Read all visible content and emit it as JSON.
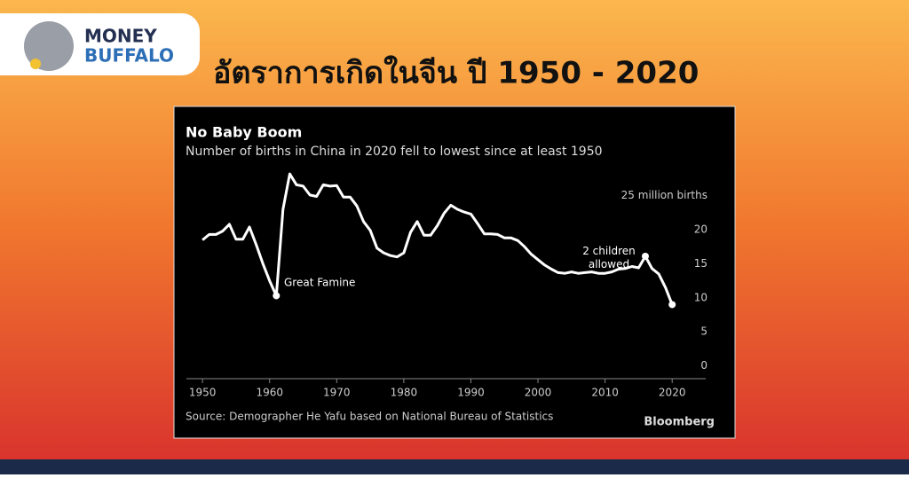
{
  "header": {
    "logo_top": "MONEY",
    "logo_bottom": "BUFFALO",
    "title": "อัตราการเกิดในจีน ปี 1950 - 2020"
  },
  "chart_data": {
    "type": "line",
    "title": "No Baby Boom",
    "subtitle": "Number of births in China in 2020 fell to lowest since at least 1950",
    "source": "Source: Demographer He Yafu based on National Bureau of Statistics",
    "brand": "Bloomberg",
    "annotations": [
      "Great Famine",
      "2 children allowed"
    ],
    "x": [
      1950,
      1951,
      1952,
      1953,
      1954,
      1955,
      1956,
      1957,
      1958,
      1959,
      1960,
      1961,
      1962,
      1963,
      1964,
      1965,
      1966,
      1967,
      1968,
      1969,
      1970,
      1971,
      1972,
      1973,
      1974,
      1975,
      1976,
      1977,
      1978,
      1979,
      1980,
      1981,
      1982,
      1983,
      1984,
      1985,
      1986,
      1987,
      1988,
      1989,
      1990,
      1991,
      1992,
      1993,
      1994,
      1995,
      1996,
      1997,
      1998,
      1999,
      2000,
      2001,
      2002,
      2003,
      2004,
      2005,
      2006,
      2007,
      2008,
      2009,
      2010,
      2011,
      2012,
      2013,
      2014,
      2015,
      2016,
      2017,
      2018,
      2019,
      2020
    ],
    "values": [
      18.5,
      19.3,
      19.3,
      19.8,
      20.8,
      18.6,
      18.6,
      20.4,
      17.8,
      15.0,
      12.5,
      10.3,
      23.0,
      28.2,
      26.6,
      26.4,
      25.1,
      24.9,
      26.6,
      26.4,
      26.5,
      24.8,
      24.8,
      23.5,
      21.2,
      19.9,
      17.3,
      16.6,
      16.2,
      16.0,
      16.6,
      19.6,
      21.2,
      19.2,
      19.2,
      20.6,
      22.4,
      23.6,
      23.0,
      22.6,
      22.3,
      20.9,
      19.4,
      19.4,
      19.3,
      18.8,
      18.8,
      18.4,
      17.5,
      16.4,
      15.6,
      14.8,
      14.2,
      13.7,
      13.6,
      13.8,
      13.6,
      13.7,
      13.8,
      13.6,
      13.6,
      13.8,
      14.2,
      14.3,
      14.6,
      14.4,
      16.1,
      14.3,
      13.5,
      11.5,
      9.0
    ],
    "color": "#ffffff",
    "xlim": [
      1947.6,
      2025
    ],
    "xticks": [
      1950,
      1960,
      1970,
      1980,
      1990,
      2000,
      2010,
      2020
    ],
    "ylim": [
      -1.5,
      29
    ],
    "yticks": [
      0,
      5,
      10,
      15,
      20,
      {
        "value": 25,
        "label": "25 million births"
      }
    ]
  }
}
